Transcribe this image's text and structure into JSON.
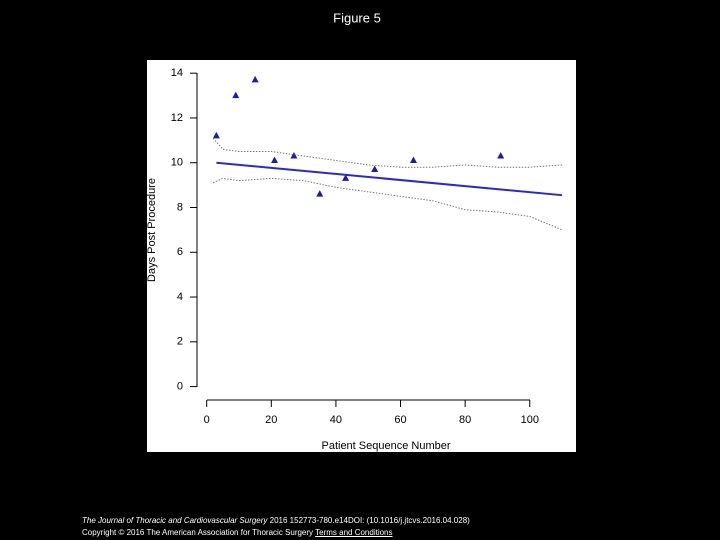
{
  "chart_data": {
    "type": "scatter",
    "title": "Figure 5",
    "xlabel": "Patient Sequence Number",
    "ylabel": "Days Post Procedure",
    "xlim": [
      -3,
      114
    ],
    "ylim": [
      -0.6,
      14.5
    ],
    "xticks": [
      0,
      20,
      40,
      60,
      80,
      100
    ],
    "yticks": [
      0,
      2,
      4,
      6,
      8,
      10,
      12,
      14
    ],
    "series": [
      {
        "type": "scatter",
        "color": "#1c1ca8",
        "x": [
          3,
          9,
          15,
          21,
          27,
          35,
          43,
          52,
          64,
          91
        ],
        "values": [
          11.2,
          13.0,
          13.7,
          10.1,
          10.3,
          8.6,
          9.3,
          9.7,
          10.1,
          10.3
        ]
      },
      {
        "type": "line",
        "color": "#2a2ac4",
        "x": [
          3,
          110
        ],
        "values": [
          10.0,
          8.55
        ]
      },
      {
        "type": "line",
        "color": "#777777",
        "linestyle": "dotted",
        "x": [
          2,
          5,
          10,
          20,
          30,
          40,
          50,
          60,
          70,
          80,
          90,
          100,
          110
        ],
        "values": [
          11.1,
          10.6,
          10.5,
          10.5,
          10.3,
          10.1,
          9.9,
          9.8,
          9.8,
          9.9,
          9.8,
          9.8,
          9.9
        ]
      },
      {
        "type": "line",
        "color": "#777777",
        "linestyle": "dotted",
        "x": [
          2,
          5,
          10,
          20,
          30,
          40,
          50,
          60,
          70,
          80,
          90,
          100,
          110
        ],
        "values": [
          9.1,
          9.3,
          9.2,
          9.3,
          9.2,
          8.9,
          8.7,
          8.5,
          8.3,
          7.9,
          7.8,
          7.6,
          7.0
        ]
      }
    ]
  },
  "footer": {
    "journal": "The Journal of Thoracic and Cardiovascular Surgery",
    "citation": "2016 152773-780.e14DOI: (10.1016/j.jtcvs.2016.04.028)",
    "copyright": "Copyright © 2016 The American Association for Thoracic Surgery",
    "link": "Terms and Conditions"
  }
}
